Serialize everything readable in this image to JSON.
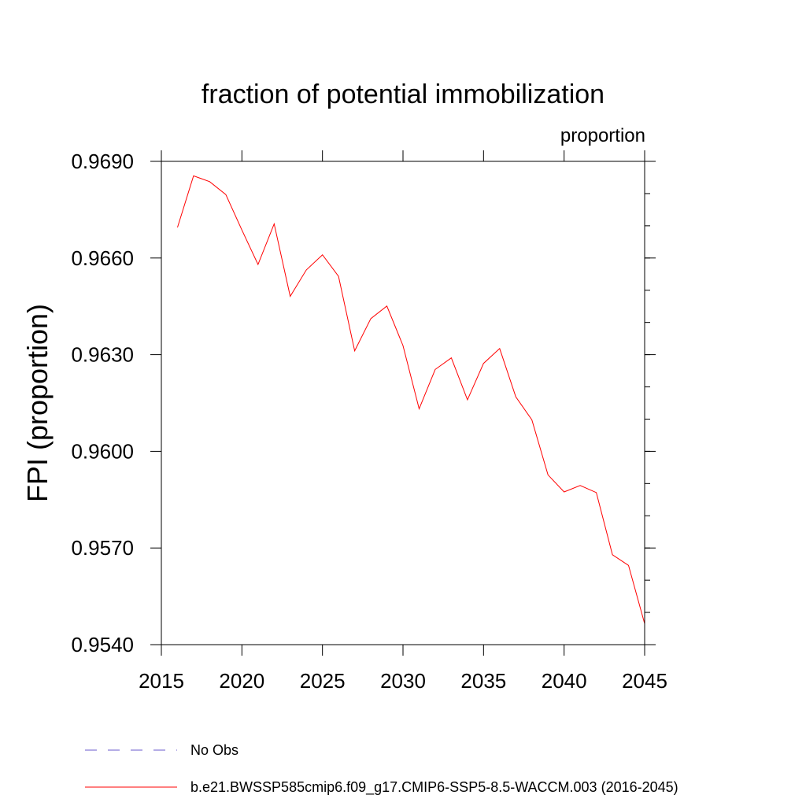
{
  "chart_data": {
    "type": "line",
    "title": "fraction of potential immobilization",
    "units_label": "proportion",
    "ylabel": "FPI  (proportion)",
    "xlabel": "",
    "xlim": [
      2015,
      2045
    ],
    "ylim": [
      0.954,
      0.969
    ],
    "x_ticks": [
      2015,
      2020,
      2025,
      2030,
      2035,
      2040,
      2045
    ],
    "x_tick_labels": [
      "2015",
      "2020",
      "2025",
      "2030",
      "2035",
      "2040",
      "2045"
    ],
    "y_ticks": [
      0.954,
      0.957,
      0.96,
      0.963,
      0.966,
      0.969
    ],
    "y_tick_labels": [
      "0.9540",
      "0.9570",
      "0.9600",
      "0.9630",
      "0.9660",
      "0.9690"
    ],
    "grid": false,
    "legend_placement": "bottom",
    "series": [
      {
        "name": "b.e21.BWSSP585cmip6.f09_g17.CMIP6-SSP5-8.5-WACCM.003 (2016-2045)",
        "color": "#ff0000",
        "style": "solid",
        "x": [
          2016,
          2017,
          2018,
          2019,
          2020,
          2021,
          2022,
          2023,
          2024,
          2025,
          2026,
          2027,
          2028,
          2029,
          2030,
          2031,
          2032,
          2033,
          2034,
          2035,
          2036,
          2037,
          2038,
          2039,
          2040,
          2041,
          2042,
          2043,
          2044,
          2045
        ],
        "values": [
          0.96695,
          0.96855,
          0.96837,
          0.96797,
          0.96687,
          0.9658,
          0.96706,
          0.96481,
          0.96563,
          0.9661,
          0.96543,
          0.96312,
          0.96412,
          0.96451,
          0.96328,
          0.96132,
          0.96254,
          0.9629,
          0.9616,
          0.96273,
          0.96319,
          0.96169,
          0.96098,
          0.95927,
          0.95874,
          0.95894,
          0.95872,
          0.95679,
          0.95646,
          0.95465
        ]
      }
    ],
    "legend": [
      {
        "label": "No Obs",
        "color": "#6a5acd",
        "style": "dashed"
      },
      {
        "label": "b.e21.BWSSP585cmip6.f09_g17.CMIP6-SSP5-8.5-WACCM.003 (2016-2045)",
        "color": "#ff0000",
        "style": "solid"
      }
    ]
  }
}
